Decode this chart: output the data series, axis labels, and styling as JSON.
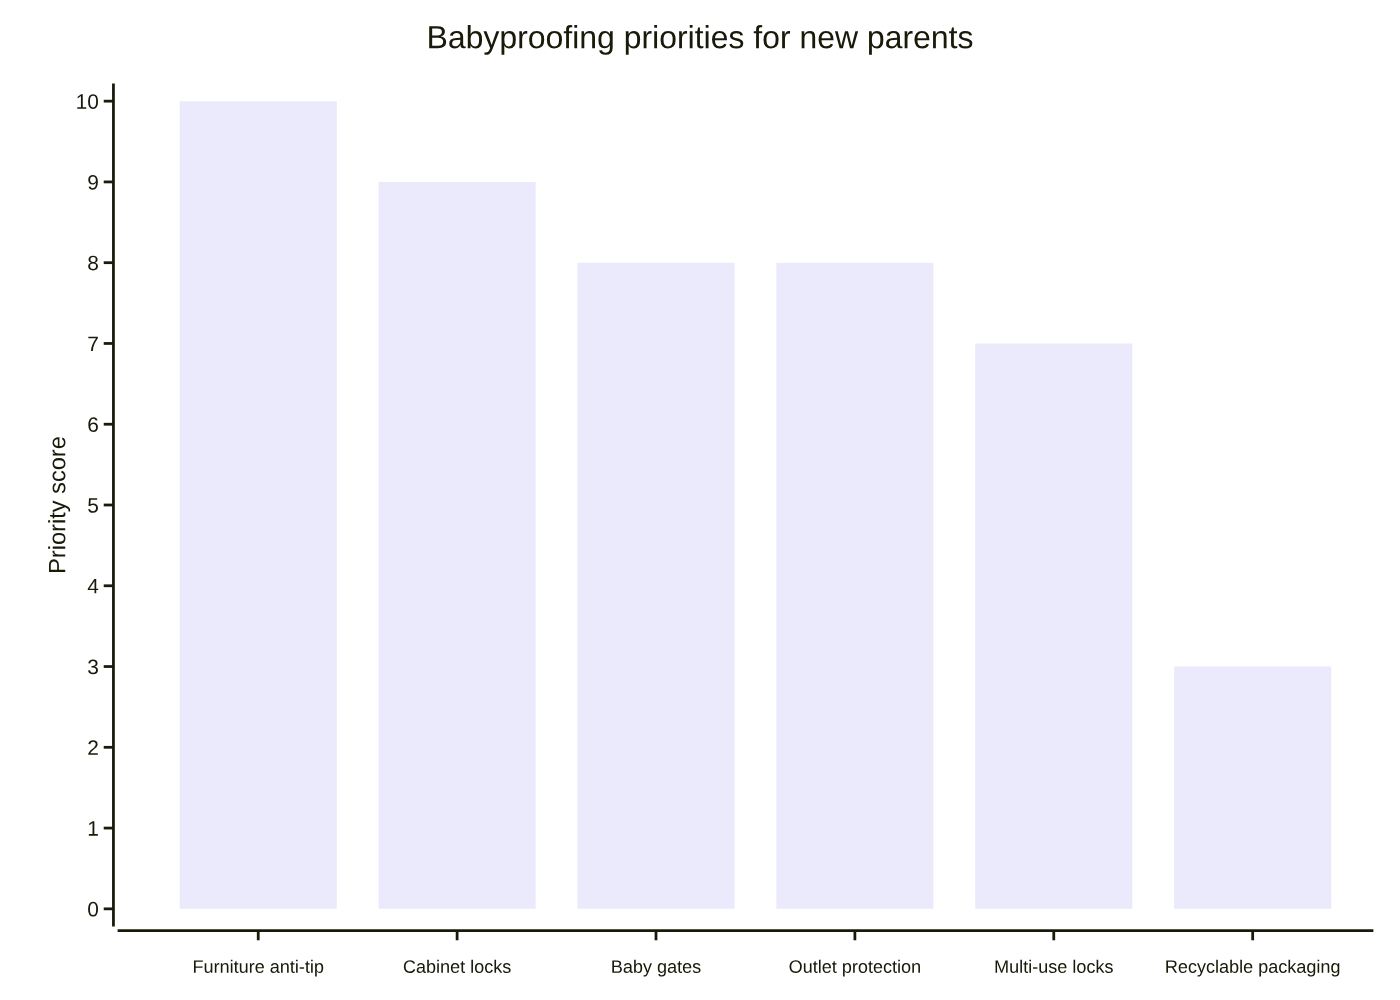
{
  "chart_data": {
    "type": "bar",
    "title": "Babyproofing priorities for new parents",
    "ylabel": "Priority score",
    "categories": [
      "Furniture anti-tip",
      "Cabinet locks",
      "Baby gates",
      "Outlet protection",
      "Multi-use locks",
      "Recyclable packaging"
    ],
    "values": [
      10,
      9,
      8,
      8,
      7,
      3
    ],
    "color": "#eaeafc",
    "ylim": [
      -0.2,
      10.2
    ],
    "yticks": [
      0,
      1,
      2,
      3,
      4,
      5,
      6,
      7,
      8,
      9,
      10
    ],
    "grid": false,
    "legend": false
  }
}
